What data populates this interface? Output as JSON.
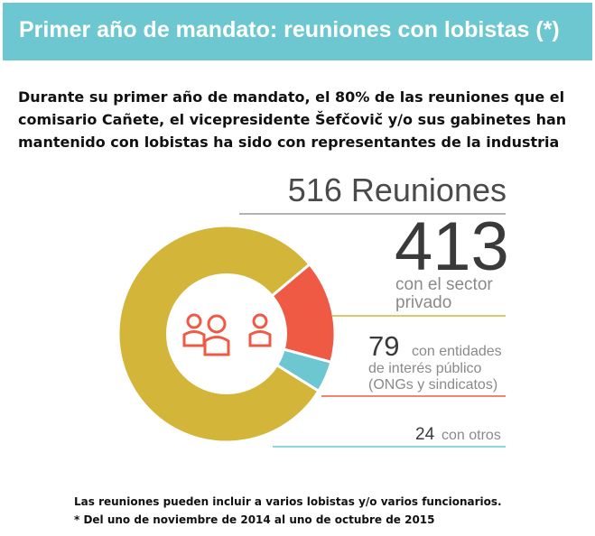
{
  "header": {
    "title": "Primer año de mandato: reuniones con lobistas (*)",
    "color": "#6cc7d1"
  },
  "intro": "Durante su primer año de mandato, el 80% de las reuniones que el comisario Cañete, el vicepresidente Šefčovič y/o sus gabinetes han mantenido con lobistas ha sido con representantes de la industria",
  "total": {
    "label": "516 Reuniones"
  },
  "segments": [
    {
      "value": "413",
      "label_line1": "con el sector",
      "label_line2": "privado",
      "color": "#d3b53a"
    },
    {
      "value": "79",
      "label_line1": "con entidades",
      "label_line2": "de interés público (ONGs y sindicatos)",
      "color": "#ef5a45"
    },
    {
      "value": "24",
      "label_line1": "con otros",
      "color": "#6cc7d1"
    }
  ],
  "center_icon": "people-group-icon",
  "footnotes": [
    "Las reuniones pueden incluir a varios lobistas y/o varios funcionarios.",
    "* Del uno de noviembre de 2014 al uno de octubre de 2015"
  ],
  "chart_data": {
    "type": "pie",
    "title": "516 Reuniones",
    "total": 516,
    "labels": [
      "con el sector privado",
      "con entidades de interés público (ONGs y sindicatos)",
      "con otros"
    ],
    "values": [
      413,
      79,
      24
    ],
    "colors": [
      "#d3b53a",
      "#ef5a45",
      "#6cc7d1"
    ]
  }
}
